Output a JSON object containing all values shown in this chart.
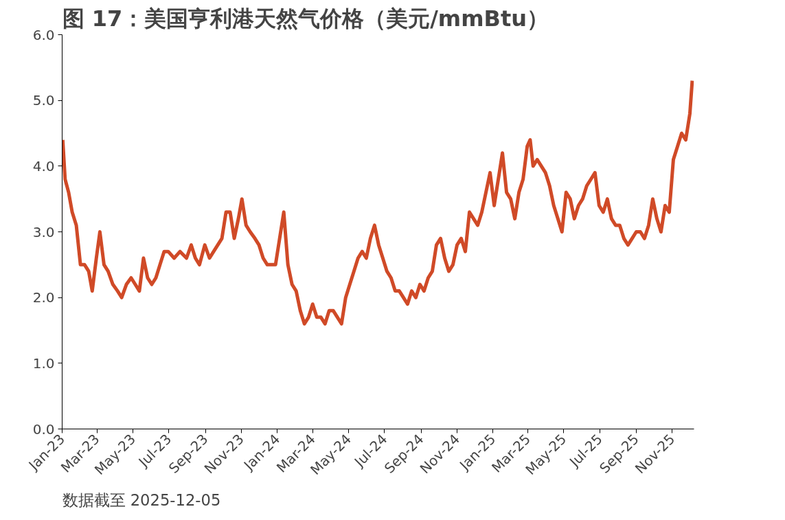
{
  "chart_data": {
    "type": "line",
    "title": "图 17：美国亨利港天然气价格（美元/mmBtu）",
    "annotations": [
      "数据截至 2025-12-05"
    ],
    "x": [
      "2023-01-02",
      "2023-01-06",
      "2023-01-12",
      "2023-01-18",
      "2023-01-25",
      "2023-02-01",
      "2023-02-08",
      "2023-02-15",
      "2023-02-21",
      "2023-02-28",
      "2023-03-06",
      "2023-03-13",
      "2023-03-20",
      "2023-03-28",
      "2023-04-05",
      "2023-04-12",
      "2023-04-20",
      "2023-04-28",
      "2023-05-05",
      "2023-05-12",
      "2023-05-19",
      "2023-05-26",
      "2023-06-02",
      "2023-06-09",
      "2023-06-16",
      "2023-06-23",
      "2023-06-30",
      "2023-07-10",
      "2023-07-20",
      "2023-07-31",
      "2023-08-08",
      "2023-08-15",
      "2023-08-22",
      "2023-08-31",
      "2023-09-08",
      "2023-09-15",
      "2023-09-22",
      "2023-09-29",
      "2023-10-06",
      "2023-10-13",
      "2023-10-20",
      "2023-10-27",
      "2023-11-02",
      "2023-11-09",
      "2023-11-16",
      "2023-11-24",
      "2023-12-01",
      "2023-12-08",
      "2023-12-15",
      "2023-12-22",
      "2023-12-29",
      "2024-01-05",
      "2024-01-12",
      "2024-01-19",
      "2024-01-26",
      "2024-02-02",
      "2024-02-09",
      "2024-02-16",
      "2024-02-23",
      "2024-03-01",
      "2024-03-08",
      "2024-03-15",
      "2024-03-22",
      "2024-03-29",
      "2024-04-05",
      "2024-04-12",
      "2024-04-19",
      "2024-04-26",
      "2024-05-03",
      "2024-05-10",
      "2024-05-17",
      "2024-05-24",
      "2024-05-31",
      "2024-06-07",
      "2024-06-14",
      "2024-06-21",
      "2024-06-28",
      "2024-07-05",
      "2024-07-12",
      "2024-07-19",
      "2024-07-26",
      "2024-08-02",
      "2024-08-09",
      "2024-08-16",
      "2024-08-23",
      "2024-08-30",
      "2024-09-06",
      "2024-09-13",
      "2024-09-20",
      "2024-09-27",
      "2024-10-04",
      "2024-10-11",
      "2024-10-18",
      "2024-10-25",
      "2024-11-01",
      "2024-11-08",
      "2024-11-15",
      "2024-11-22",
      "2024-11-29",
      "2024-12-06",
      "2024-12-13",
      "2024-12-20",
      "2024-12-27",
      "2025-01-03",
      "2025-01-10",
      "2025-01-17",
      "2025-01-24",
      "2025-01-31",
      "2025-02-07",
      "2025-02-14",
      "2025-02-21",
      "2025-02-28",
      "2025-03-05",
      "2025-03-10",
      "2025-03-17",
      "2025-03-24",
      "2025-03-31",
      "2025-04-07",
      "2025-04-14",
      "2025-04-21",
      "2025-04-28",
      "2025-05-05",
      "2025-05-12",
      "2025-05-19",
      "2025-05-26",
      "2025-06-02",
      "2025-06-09",
      "2025-06-16",
      "2025-06-23",
      "2025-06-30",
      "2025-07-07",
      "2025-07-14",
      "2025-07-21",
      "2025-07-28",
      "2025-08-04",
      "2025-08-11",
      "2025-08-18",
      "2025-08-25",
      "2025-09-01",
      "2025-09-08",
      "2025-09-15",
      "2025-09-22",
      "2025-09-29",
      "2025-10-06",
      "2025-10-13",
      "2025-10-20",
      "2025-10-27",
      "2025-11-03",
      "2025-11-10",
      "2025-11-17",
      "2025-11-24",
      "2025-12-01",
      "2025-12-05"
    ],
    "series": [
      {
        "color": "#d04a27",
        "values": [
          4.4,
          3.8,
          3.6,
          3.3,
          3.1,
          2.5,
          2.5,
          2.4,
          2.1,
          2.6,
          3.0,
          2.5,
          2.4,
          2.2,
          2.1,
          2.0,
          2.2,
          2.3,
          2.2,
          2.1,
          2.6,
          2.3,
          2.2,
          2.3,
          2.5,
          2.7,
          2.7,
          2.6,
          2.7,
          2.6,
          2.8,
          2.6,
          2.5,
          2.8,
          2.6,
          2.7,
          2.8,
          2.9,
          3.3,
          3.3,
          2.9,
          3.2,
          3.5,
          3.1,
          3.0,
          2.9,
          2.8,
          2.6,
          2.5,
          2.5,
          2.5,
          2.9,
          3.3,
          2.5,
          2.2,
          2.1,
          1.8,
          1.6,
          1.7,
          1.9,
          1.7,
          1.7,
          1.6,
          1.8,
          1.8,
          1.7,
          1.6,
          2.0,
          2.2,
          2.4,
          2.6,
          2.7,
          2.6,
          2.9,
          3.1,
          2.8,
          2.6,
          2.4,
          2.3,
          2.1,
          2.1,
          2.0,
          1.9,
          2.1,
          2.0,
          2.2,
          2.1,
          2.3,
          2.4,
          2.8,
          2.9,
          2.6,
          2.4,
          2.5,
          2.8,
          2.9,
          2.7,
          3.3,
          3.2,
          3.1,
          3.3,
          3.6,
          3.9,
          3.4,
          3.8,
          4.2,
          3.6,
          3.5,
          3.2,
          3.6,
          3.8,
          4.3,
          4.4,
          4.0,
          4.1,
          4.0,
          3.9,
          3.7,
          3.4,
          3.2,
          3.0,
          3.6,
          3.5,
          3.2,
          3.4,
          3.5,
          3.7,
          3.8,
          3.9,
          3.4,
          3.3,
          3.5,
          3.2,
          3.1,
          3.1,
          2.9,
          2.8,
          2.9,
          3.0,
          3.0,
          2.9,
          3.1,
          3.5,
          3.2,
          3.0,
          3.4,
          3.3,
          4.1,
          4.3,
          4.5,
          4.4,
          4.8,
          5.3
        ]
      }
    ],
    "xlim": [
      "2023-01-01",
      "2025-12-08"
    ],
    "xticks": [
      {
        "value": "2023-01-01",
        "label": "Jan-23"
      },
      {
        "value": "2023-03-01",
        "label": "Mar-23"
      },
      {
        "value": "2023-05-01",
        "label": "May-23"
      },
      {
        "value": "2023-07-01",
        "label": "Jul-23"
      },
      {
        "value": "2023-09-01",
        "label": "Sep-23"
      },
      {
        "value": "2023-11-01",
        "label": "Nov-23"
      },
      {
        "value": "2024-01-01",
        "label": "Jan-24"
      },
      {
        "value": "2024-03-01",
        "label": "Mar-24"
      },
      {
        "value": "2024-05-01",
        "label": "May-24"
      },
      {
        "value": "2024-07-01",
        "label": "Jul-24"
      },
      {
        "value": "2024-09-01",
        "label": "Sep-24"
      },
      {
        "value": "2024-11-01",
        "label": "Nov-24"
      },
      {
        "value": "2025-01-01",
        "label": "Jan-25"
      },
      {
        "value": "2025-03-01",
        "label": "Mar-25"
      },
      {
        "value": "2025-05-01",
        "label": "May-25"
      },
      {
        "value": "2025-07-01",
        "label": "Jul-25"
      },
      {
        "value": "2025-09-01",
        "label": "Sep-25"
      },
      {
        "value": "2025-11-01",
        "label": "Nov-25"
      }
    ],
    "ylim": [
      0,
      6
    ],
    "yticks": [
      {
        "value": 0,
        "label": "0.0"
      },
      {
        "value": 1,
        "label": "1.0"
      },
      {
        "value": 2,
        "label": "2.0"
      },
      {
        "value": 3,
        "label": "3.0"
      },
      {
        "value": 4,
        "label": "4.0"
      },
      {
        "value": 5,
        "label": "5.0"
      },
      {
        "value": 6,
        "label": "6.0"
      }
    ],
    "grid": false,
    "marker": "none",
    "line_style": "solid"
  }
}
